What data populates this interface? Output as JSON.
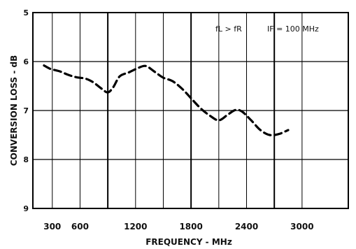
{
  "chart_data": {
    "type": "line",
    "title": "",
    "xlabel": "FREQUENCY - MHz",
    "ylabel": "CONVERSION LOSS - dB",
    "annotations": [
      "fL > fR",
      "IF = 100 MHz"
    ],
    "xlim": [
      90,
      3500
    ],
    "ylim": [
      9,
      5
    ],
    "y_inverted": true,
    "grid": true,
    "legend": "none",
    "x_ticks": [
      300,
      600,
      1200,
      1800,
      2400,
      3000
    ],
    "x_tick_labels": [
      "300",
      "600",
      "1200",
      "1800",
      "2400",
      "3000"
    ],
    "x_gridlines": [
      300,
      600,
      900,
      1200,
      1500,
      1800,
      2100,
      2400,
      2700,
      3000
    ],
    "x_gridlines_bold": [
      900,
      1800,
      2700
    ],
    "y_ticks": [
      5,
      6,
      7,
      8,
      9
    ],
    "y_tick_labels": [
      "5",
      "6",
      "7",
      "8",
      "9"
    ],
    "colors": {
      "line": "#000000",
      "grid": "#000000",
      "background": "#ffffff"
    },
    "series": [
      {
        "style": "dashed",
        "x": [
          210,
          280,
          380,
          470,
          560,
          660,
          740,
          830,
          900,
          960,
          1030,
          1130,
          1230,
          1310,
          1400,
          1500,
          1600,
          1700,
          1800,
          1900,
          2000,
          2100,
          2200,
          2280,
          2350,
          2450,
          2550,
          2650,
          2750,
          2850
        ],
        "y": [
          6.08,
          6.15,
          6.2,
          6.27,
          6.32,
          6.35,
          6.42,
          6.55,
          6.63,
          6.52,
          6.3,
          6.22,
          6.13,
          6.09,
          6.2,
          6.33,
          6.4,
          6.55,
          6.75,
          6.95,
          7.1,
          7.2,
          7.08,
          6.99,
          7.02,
          7.2,
          7.4,
          7.5,
          7.48,
          7.4
        ]
      }
    ]
  }
}
